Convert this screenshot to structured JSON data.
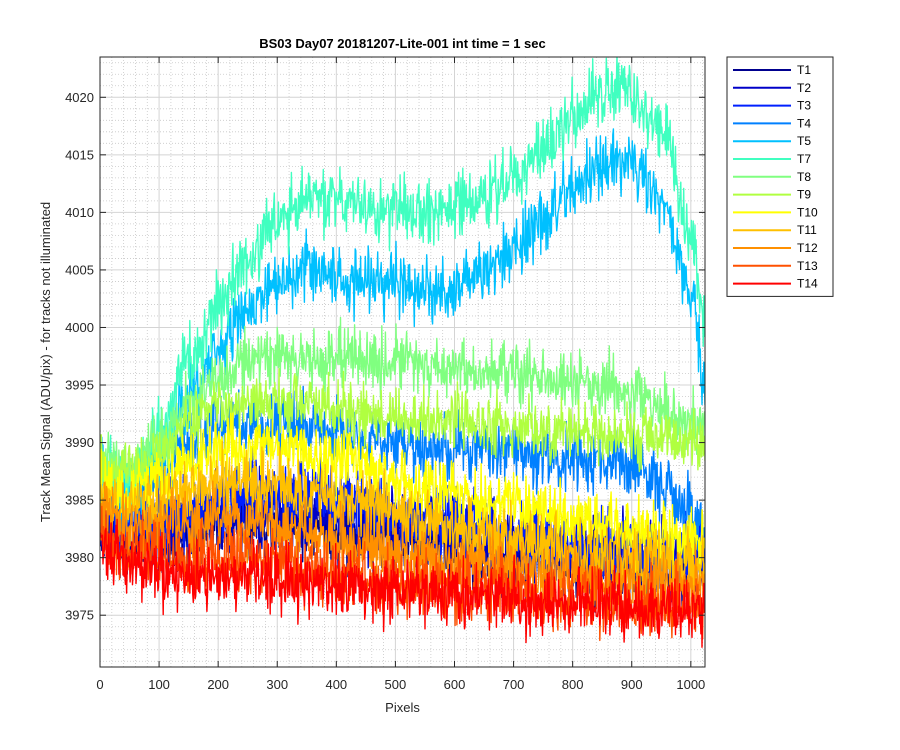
{
  "chart_data": {
    "type": "line",
    "title": "BS03 Day07 20181207-Lite-001 int time = 1 sec",
    "xlabel": "Pixels",
    "ylabel": "Track Mean Signal (ADU/pix) - for tracks not illuminated",
    "xlim": [
      0,
      1024
    ],
    "ylim": [
      3970.5,
      4023.5
    ],
    "x_ticks": [
      0,
      100,
      200,
      300,
      400,
      500,
      600,
      700,
      800,
      900,
      1000
    ],
    "y_ticks": [
      3975,
      3980,
      3985,
      3990,
      3995,
      4000,
      4005,
      4010,
      4015,
      4020
    ],
    "grid": true,
    "minor_grid": true,
    "legend_position": "outside-top-right",
    "x_knots": [
      0,
      50,
      100,
      150,
      200,
      250,
      300,
      350,
      400,
      450,
      500,
      550,
      600,
      650,
      700,
      750,
      800,
      850,
      900,
      950,
      1000,
      1024
    ],
    "series": [
      {
        "name": "T1",
        "color": "#00008f",
        "noise": 2.2,
        "seed": 1,
        "values": [
          3982,
          3981.5,
          3981.5,
          3982,
          3982.5,
          3983,
          3983,
          3983,
          3982.5,
          3982,
          3982,
          3981.5,
          3981,
          3980.5,
          3980,
          3980,
          3979.5,
          3979.5,
          3979.5,
          3979,
          3979,
          3979
        ]
      },
      {
        "name": "T2",
        "color": "#0000c8",
        "noise": 2.2,
        "seed": 2,
        "values": [
          3983,
          3982.5,
          3982.5,
          3983,
          3983.5,
          3984,
          3984,
          3984,
          3983.5,
          3983,
          3983,
          3982.5,
          3982,
          3981.5,
          3981,
          3981,
          3980.5,
          3980.5,
          3980.5,
          3980,
          3980,
          3980
        ]
      },
      {
        "name": "T3",
        "color": "#0020ff",
        "noise": 2.2,
        "seed": 3,
        "values": [
          3984,
          3983.5,
          3983.5,
          3984,
          3985,
          3985.5,
          3985.5,
          3985.5,
          3985,
          3984.5,
          3984,
          3983.5,
          3983,
          3982.5,
          3982,
          3981.5,
          3981,
          3981,
          3981,
          3980.5,
          3980.5,
          3980.5
        ]
      },
      {
        "name": "T4",
        "color": "#0080ff",
        "noise": 2.0,
        "seed": 4,
        "values": [
          3986,
          3985.5,
          3987,
          3990,
          3991.5,
          3991.5,
          3991.5,
          3991.5,
          3991,
          3990.5,
          3990,
          3989.5,
          3989.5,
          3989.5,
          3989,
          3988.5,
          3988.5,
          3988.5,
          3988,
          3986.5,
          3984,
          3982.5
        ]
      },
      {
        "name": "T5",
        "color": "#00c0ff",
        "noise": 2.0,
        "seed": 5,
        "values": [
          3987,
          3986,
          3989,
          3994,
          3998,
          4001,
          4004,
          4005.5,
          4005,
          4004,
          4003.5,
          4003,
          4003.5,
          4005,
          4007,
          4009.5,
          4012,
          4014,
          4014.5,
          4011,
          4003,
          3995
        ]
      },
      {
        "name": "T7",
        "color": "#40ffc0",
        "noise": 2.0,
        "seed": 7,
        "values": [
          3988,
          3987,
          3991,
          3997,
          4002,
          4006,
          4009,
          4011.5,
          4011,
          4010.5,
          4010,
          4010,
          4010.5,
          4011.5,
          4013,
          4015.5,
          4018,
          4020.5,
          4020.5,
          4017,
          4008,
          4000
        ]
      },
      {
        "name": "T8",
        "color": "#80ff80",
        "noise": 1.8,
        "seed": 8,
        "values": [
          3988.5,
          3988,
          3990,
          3993,
          3995.5,
          3997,
          3997.5,
          3997.5,
          3997.5,
          3997,
          3997,
          3997,
          3996.5,
          3996,
          3996,
          3995.5,
          3995,
          3995,
          3994.5,
          3993,
          3991.5,
          3991
        ]
      },
      {
        "name": "T9",
        "color": "#b0ff40",
        "noise": 1.8,
        "seed": 9,
        "values": [
          3988,
          3987.5,
          3989,
          3991.5,
          3993,
          3993.5,
          3993.5,
          3993.5,
          3993,
          3992.5,
          3992,
          3992,
          3992,
          3991.5,
          3991.5,
          3991,
          3991,
          3991,
          3990.5,
          3990.5,
          3990.5,
          3990.5
        ]
      },
      {
        "name": "T10",
        "color": "#ffff00",
        "noise": 2.0,
        "seed": 10,
        "values": [
          3986,
          3985.5,
          3986.5,
          3988,
          3989,
          3989.5,
          3989.5,
          3989,
          3988.5,
          3988,
          3987,
          3986,
          3985.5,
          3985,
          3984.5,
          3984,
          3983.5,
          3983,
          3982.5,
          3982,
          3981.5,
          3981.5
        ]
      },
      {
        "name": "T11",
        "color": "#ffc000",
        "noise": 2.0,
        "seed": 11,
        "values": [
          3985,
          3984.5,
          3985,
          3986,
          3986.5,
          3986.5,
          3986,
          3985.5,
          3985,
          3984.5,
          3984,
          3983,
          3982.5,
          3982,
          3981.5,
          3981,
          3980.5,
          3980,
          3980,
          3979.5,
          3979,
          3979
        ]
      },
      {
        "name": "T12",
        "color": "#ff9000",
        "noise": 2.0,
        "seed": 12,
        "values": [
          3983.5,
          3982.5,
          3982.5,
          3983,
          3983.5,
          3983,
          3982.5,
          3982,
          3981.5,
          3981,
          3980.5,
          3980,
          3979.5,
          3979.5,
          3979,
          3978.5,
          3978.5,
          3978,
          3978,
          3977.5,
          3977.5,
          3977.5
        ]
      },
      {
        "name": "T13",
        "color": "#ff5000",
        "noise": 2.0,
        "seed": 13,
        "values": [
          3982,
          3980.5,
          3980,
          3980,
          3980,
          3980,
          3979.5,
          3979,
          3978.5,
          3978,
          3978,
          3977.5,
          3977.5,
          3977,
          3977,
          3976.5,
          3976.5,
          3976.5,
          3976,
          3976,
          3976,
          3976
        ]
      },
      {
        "name": "T14",
        "color": "#ff0000",
        "noise": 2.0,
        "seed": 14,
        "values": [
          3981,
          3979,
          3978.5,
          3978.5,
          3978.5,
          3978.5,
          3978,
          3978,
          3977.5,
          3977.5,
          3977,
          3977,
          3977,
          3976.5,
          3976.5,
          3976,
          3976,
          3976,
          3975.5,
          3975.5,
          3975.5,
          3975.5
        ]
      }
    ]
  }
}
